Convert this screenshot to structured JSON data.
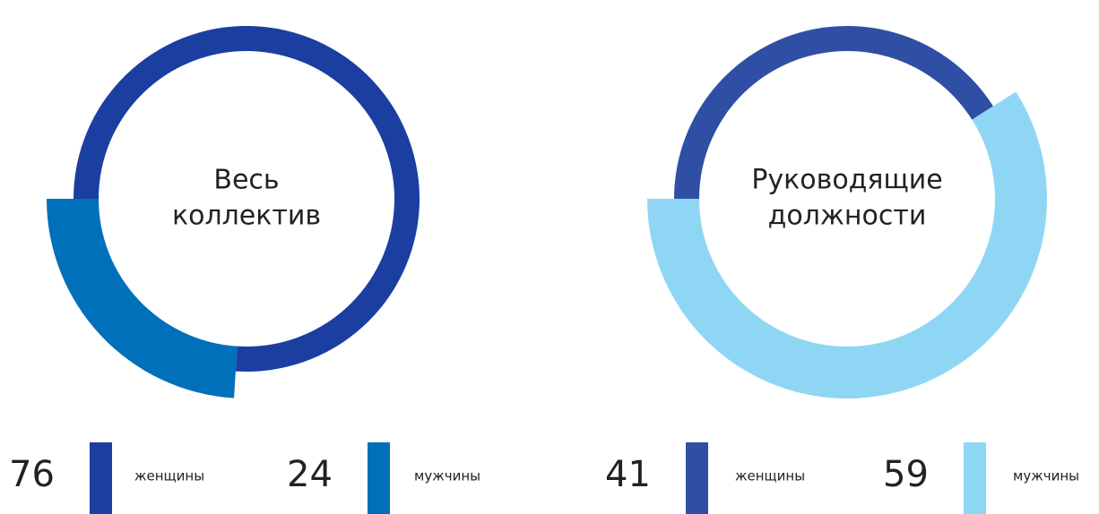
{
  "chart_data": [
    {
      "type": "pie",
      "title": [
        "Весь",
        "коллектив"
      ],
      "categories": [
        "женщины",
        "мужчины"
      ],
      "values": [
        76,
        24
      ],
      "colors": [
        "#1b3fa0",
        "#0070ba"
      ]
    },
    {
      "type": "pie",
      "title": [
        "Руководящие",
        "должности"
      ],
      "categories": [
        "женщины",
        "мужчины"
      ],
      "values": [
        41,
        59
      ],
      "colors": [
        "#2f4fa4",
        "#8fd6f5"
      ]
    }
  ]
}
